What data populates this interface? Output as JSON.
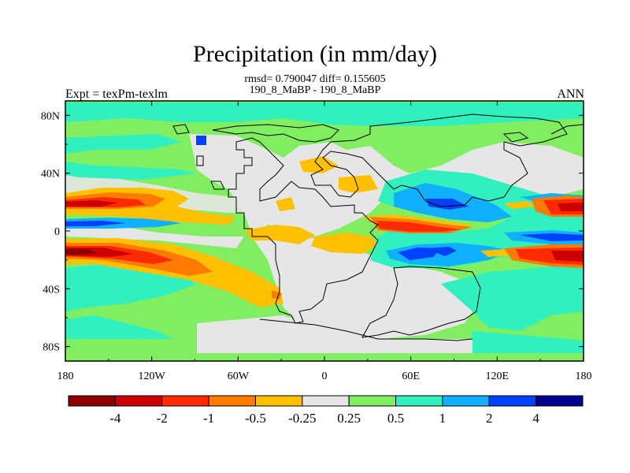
{
  "header": {
    "title": "Precipitation (in mm/day)",
    "stats_line": "rmsd= 0.790047 diff= 0.155605",
    "cases_line": "190_8_MaBP - 190_8_MaBP",
    "expt_label": "Expt = texPm-texlm",
    "season_label": "ANN"
  },
  "axes": {
    "lon_ticks": [
      "180",
      "120W",
      "60W",
      "0",
      "60E",
      "120E",
      "180"
    ],
    "lat_ticks": [
      "80N",
      "40N",
      "0",
      "40S",
      "80S"
    ]
  },
  "colorbar": {
    "colors": [
      "#8b0000",
      "#cc0000",
      "#ff2a00",
      "#ff7a00",
      "#ffc000",
      "#e6e6e6",
      "#80ee60",
      "#30f0c0",
      "#10b0ff",
      "#0040ff",
      "#000090"
    ],
    "labels": [
      "-4",
      "-2",
      "-1",
      "-0.5",
      "-0.25",
      "0.25",
      "0.5",
      "1",
      "2",
      "4"
    ]
  }
}
